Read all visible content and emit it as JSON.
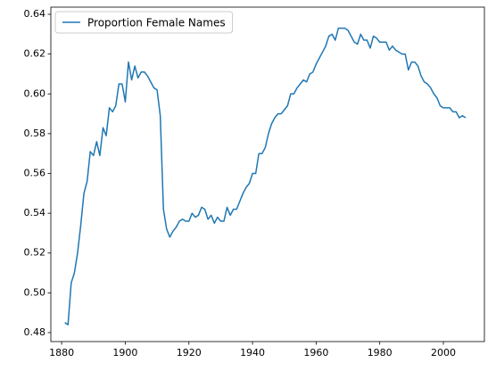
{
  "chart_data": {
    "type": "line",
    "x": [
      1881,
      1882,
      1883,
      1884,
      1885,
      1886,
      1887,
      1888,
      1889,
      1890,
      1891,
      1892,
      1893,
      1894,
      1895,
      1896,
      1897,
      1898,
      1899,
      1900,
      1901,
      1902,
      1903,
      1904,
      1905,
      1906,
      1907,
      1908,
      1909,
      1910,
      1911,
      1912,
      1913,
      1914,
      1915,
      1916,
      1917,
      1918,
      1919,
      1920,
      1921,
      1922,
      1923,
      1924,
      1925,
      1926,
      1927,
      1928,
      1929,
      1930,
      1931,
      1932,
      1933,
      1934,
      1935,
      1936,
      1937,
      1938,
      1939,
      1940,
      1941,
      1942,
      1943,
      1944,
      1945,
      1946,
      1947,
      1948,
      1949,
      1950,
      1951,
      1952,
      1953,
      1954,
      1955,
      1956,
      1957,
      1958,
      1959,
      1960,
      1961,
      1962,
      1963,
      1964,
      1965,
      1966,
      1967,
      1968,
      1969,
      1970,
      1971,
      1972,
      1973,
      1974,
      1975,
      1976,
      1977,
      1978,
      1979,
      1980,
      1981,
      1982,
      1983,
      1984,
      1985,
      1986,
      1987,
      1988,
      1989,
      1990,
      1991,
      1992,
      1993,
      1994,
      1995,
      1996,
      1997,
      1998,
      1999,
      2000,
      2001,
      2002,
      2003,
      2004,
      2005,
      2006,
      2007
    ],
    "series": [
      {
        "name": "Proportion Female Names",
        "color": "#1f77b4",
        "values": [
          0.485,
          0.484,
          0.505,
          0.51,
          0.52,
          0.534,
          0.55,
          0.556,
          0.571,
          0.569,
          0.576,
          0.569,
          0.583,
          0.579,
          0.593,
          0.591,
          0.594,
          0.605,
          0.605,
          0.596,
          0.616,
          0.607,
          0.614,
          0.608,
          0.611,
          0.611,
          0.609,
          0.606,
          0.603,
          0.602,
          0.589,
          0.542,
          0.532,
          0.528,
          0.531,
          0.533,
          0.536,
          0.537,
          0.536,
          0.536,
          0.54,
          0.538,
          0.539,
          0.543,
          0.542,
          0.537,
          0.539,
          0.535,
          0.538,
          0.536,
          0.536,
          0.543,
          0.539,
          0.542,
          0.542,
          0.546,
          0.55,
          0.553,
          0.555,
          0.56,
          0.56,
          0.57,
          0.57,
          0.573,
          0.58,
          0.585,
          0.588,
          0.59,
          0.59,
          0.592,
          0.594,
          0.6,
          0.6,
          0.603,
          0.605,
          0.607,
          0.606,
          0.61,
          0.611,
          0.615,
          0.618,
          0.621,
          0.624,
          0.629,
          0.63,
          0.627,
          0.633,
          0.633,
          0.633,
          0.632,
          0.629,
          0.626,
          0.625,
          0.63,
          0.627,
          0.627,
          0.623,
          0.629,
          0.628,
          0.626,
          0.626,
          0.626,
          0.622,
          0.624,
          0.622,
          0.621,
          0.62,
          0.62,
          0.612,
          0.616,
          0.616,
          0.614,
          0.609,
          0.606,
          0.605,
          0.603,
          0.6,
          0.598,
          0.594,
          0.593,
          0.593,
          0.593,
          0.591,
          0.591,
          0.588,
          0.589,
          0.588
        ]
      }
    ],
    "xlim": [
      1876.6,
      2012.9
    ],
    "xticks": [
      1880,
      1900,
      1920,
      1940,
      1960,
      1980,
      2000
    ],
    "ylim": [
      0.4755,
      0.6436
    ],
    "yticks": [
      0.48,
      {
        "value": 0.5,
        "label": "0.50"
      },
      0.52,
      0.54,
      0.56,
      0.58,
      {
        "value": 0.6,
        "label": "0.60"
      },
      0.62,
      0.64
    ],
    "legend": "upper left",
    "grid": false
  }
}
